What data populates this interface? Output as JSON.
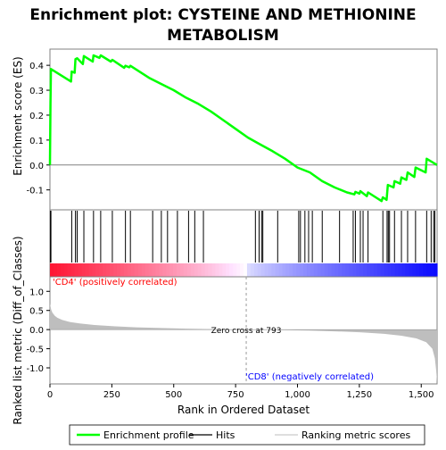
{
  "title_line1": "Enrichment plot: CYSTEINE AND METHIONINE",
  "title_line2": "METABOLISM",
  "colors": {
    "es_line": "#00ff00",
    "hits": "#000000",
    "metric_fill": "#bebebe",
    "pos_label": "#ff0000",
    "neg_label": "#0000ff",
    "panel_border": "#808080"
  },
  "chart_data": {
    "type": "line",
    "n_genes": 1564,
    "xlabel": "Rank in Ordered Dataset",
    "x_ticks": [
      0,
      250,
      500,
      750,
      1000,
      1250,
      1500
    ],
    "x_tick_labels": [
      "0",
      "250",
      "500",
      "750",
      "1,000",
      "1,250",
      "1,500"
    ],
    "es_panel": {
      "ylabel": "Enrichment score (ES)",
      "ylim": [
        -0.18,
        0.465
      ],
      "y_ticks": [
        -0.1,
        0.0,
        0.1,
        0.2,
        0.3,
        0.4
      ],
      "y_tick_labels": [
        "-0.1",
        "0.0",
        "0.1",
        "0.2",
        "0.3",
        "0.4"
      ],
      "points": [
        [
          0,
          0.0
        ],
        [
          2,
          0.25
        ],
        [
          4,
          0.385
        ],
        [
          85,
          0.335
        ],
        [
          88,
          0.375
        ],
        [
          100,
          0.37
        ],
        [
          103,
          0.425
        ],
        [
          110,
          0.428
        ],
        [
          133,
          0.405
        ],
        [
          137,
          0.437
        ],
        [
          173,
          0.415
        ],
        [
          176,
          0.44
        ],
        [
          200,
          0.43
        ],
        [
          205,
          0.44
        ],
        [
          246,
          0.415
        ],
        [
          252,
          0.422
        ],
        [
          300,
          0.39
        ],
        [
          305,
          0.398
        ],
        [
          320,
          0.392
        ],
        [
          325,
          0.398
        ],
        [
          400,
          0.35
        ],
        [
          450,
          0.325
        ],
        [
          500,
          0.3
        ],
        [
          550,
          0.27
        ],
        [
          600,
          0.245
        ],
        [
          650,
          0.215
        ],
        [
          700,
          0.18
        ],
        [
          750,
          0.145
        ],
        [
          800,
          0.11
        ],
        [
          850,
          0.082
        ],
        [
          900,
          0.055
        ],
        [
          950,
          0.025
        ],
        [
          1000,
          -0.01
        ],
        [
          1050,
          -0.03
        ],
        [
          1100,
          -0.065
        ],
        [
          1150,
          -0.09
        ],
        [
          1200,
          -0.11
        ],
        [
          1230,
          -0.118
        ],
        [
          1234,
          -0.108
        ],
        [
          1250,
          -0.115
        ],
        [
          1254,
          -0.105
        ],
        [
          1280,
          -0.125
        ],
        [
          1285,
          -0.11
        ],
        [
          1340,
          -0.145
        ],
        [
          1345,
          -0.13
        ],
        [
          1360,
          -0.14
        ],
        [
          1365,
          -0.08
        ],
        [
          1388,
          -0.09
        ],
        [
          1392,
          -0.065
        ],
        [
          1415,
          -0.075
        ],
        [
          1420,
          -0.05
        ],
        [
          1440,
          -0.06
        ],
        [
          1445,
          -0.03
        ],
        [
          1472,
          -0.048
        ],
        [
          1477,
          -0.01
        ],
        [
          1518,
          -0.03
        ],
        [
          1522,
          0.025
        ],
        [
          1564,
          0.0
        ]
      ]
    },
    "hits": [
      2,
      4,
      88,
      103,
      110,
      137,
      176,
      205,
      252,
      305,
      325,
      415,
      450,
      475,
      515,
      560,
      585,
      620,
      830,
      845,
      855,
      860,
      920,
      1005,
      1012,
      1030,
      1045,
      1060,
      1100,
      1170,
      1225,
      1234,
      1254,
      1265,
      1285,
      1345,
      1362,
      1367,
      1372,
      1392,
      1420,
      1445,
      1477,
      1522,
      1540,
      1550,
      1555
    ],
    "metric_panel": {
      "ylabel": "Ranked list metric (Diff_of_Classes)",
      "ylim": [
        -1.42,
        1.38
      ],
      "y_ticks": [
        -1.0,
        -0.5,
        0.0,
        0.5,
        1.0
      ],
      "y_tick_labels": [
        "-1.0",
        "-0.5",
        "0.0",
        "0.5",
        "1.0"
      ],
      "profile": [
        [
          0,
          0.68
        ],
        [
          5,
          0.52
        ],
        [
          10,
          0.44
        ],
        [
          20,
          0.36
        ],
        [
          30,
          0.31
        ],
        [
          50,
          0.25
        ],
        [
          80,
          0.2
        ],
        [
          120,
          0.16
        ],
        [
          180,
          0.12
        ],
        [
          250,
          0.09
        ],
        [
          350,
          0.06
        ],
        [
          450,
          0.04
        ],
        [
          550,
          0.025
        ],
        [
          650,
          0.012
        ],
        [
          750,
          0.004
        ],
        [
          793,
          0.0
        ],
        [
          850,
          -0.005
        ],
        [
          950,
          -0.015
        ],
        [
          1050,
          -0.028
        ],
        [
          1150,
          -0.045
        ],
        [
          1250,
          -0.07
        ],
        [
          1350,
          -0.11
        ],
        [
          1420,
          -0.16
        ],
        [
          1480,
          -0.23
        ],
        [
          1520,
          -0.33
        ],
        [
          1545,
          -0.5
        ],
        [
          1555,
          -0.75
        ],
        [
          1560,
          -1.05
        ],
        [
          1564,
          -1.38
        ]
      ],
      "zero_cross_label": "Zero cross at 793",
      "zero_cross_rank": 793,
      "pos_label": "'CD4' (positively correlated)",
      "neg_label": "'CD8' (negatively correlated)"
    }
  },
  "legend": {
    "items": [
      {
        "label": "Enrichment profile",
        "color": "#00ff00"
      },
      {
        "label": "Hits",
        "color": "#000000"
      },
      {
        "label": "Ranking metric scores",
        "color": "#bebebe"
      }
    ]
  }
}
